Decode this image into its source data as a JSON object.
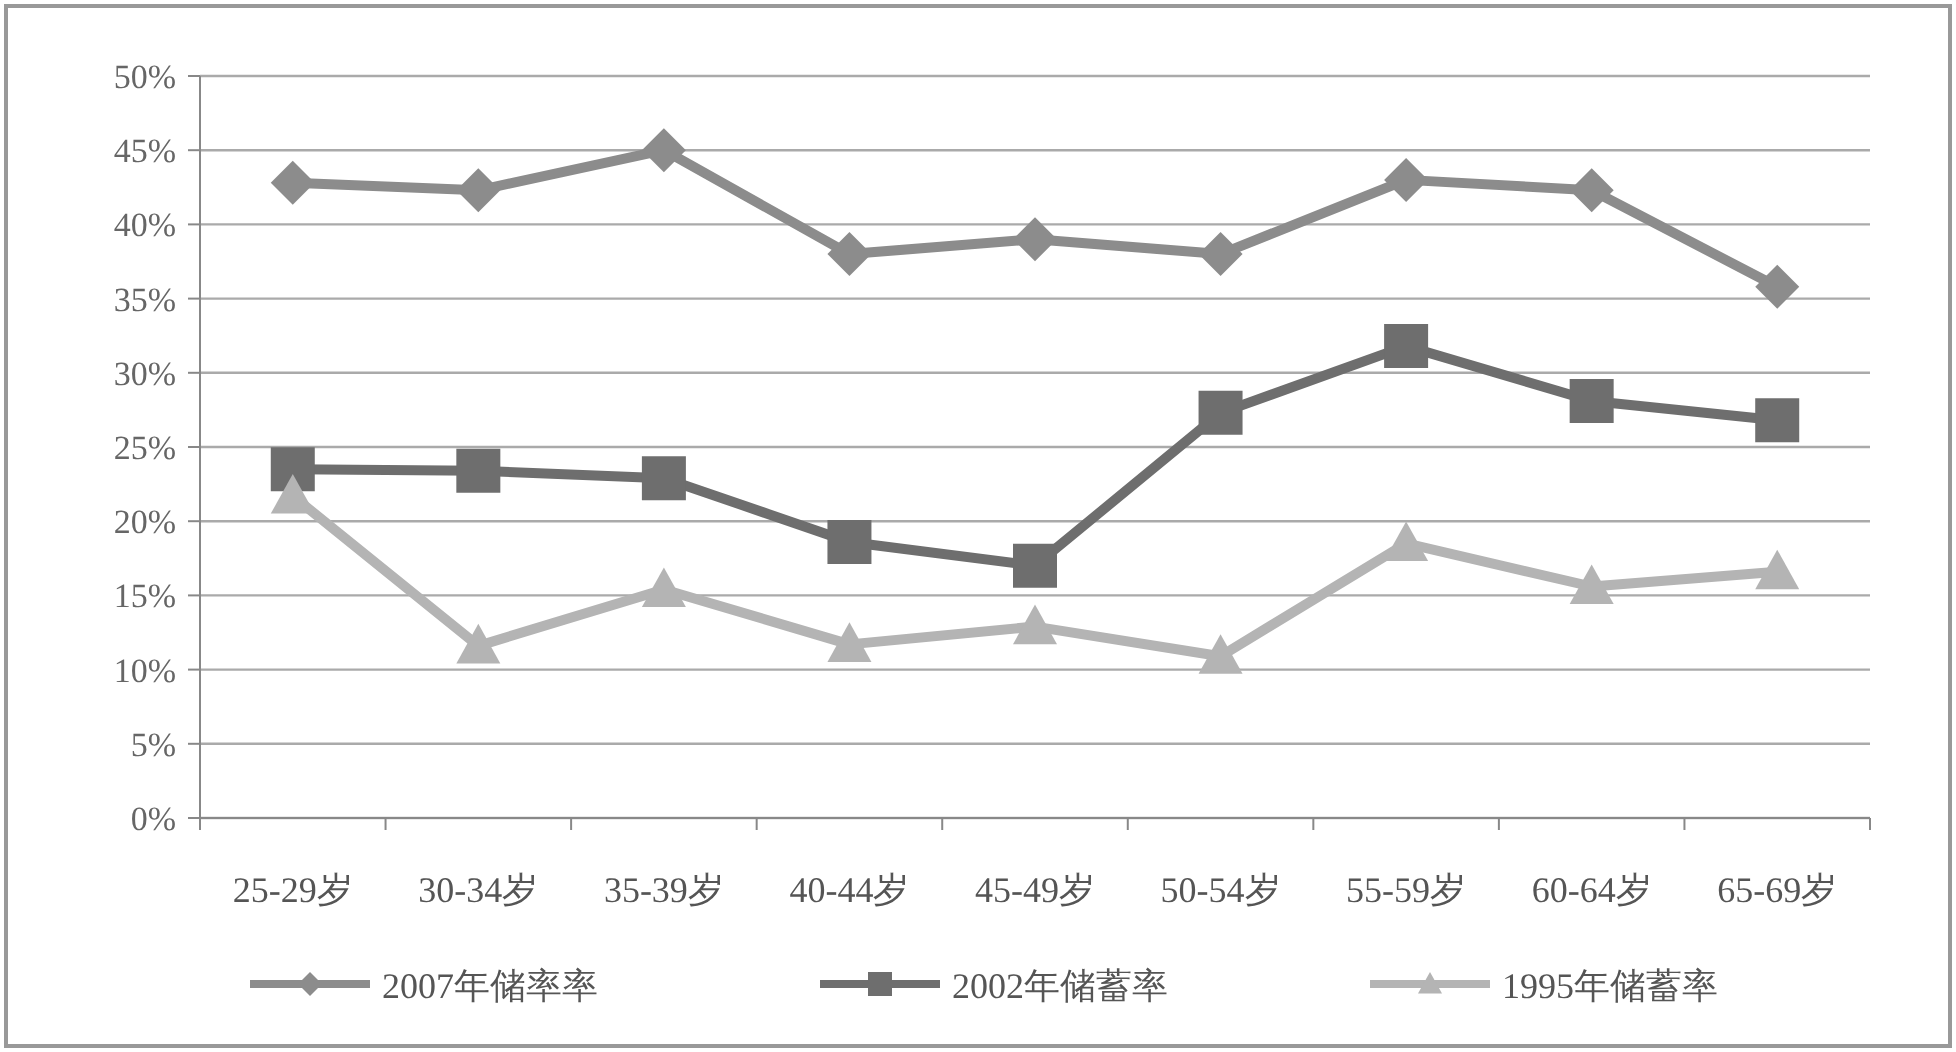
{
  "chart_data": {
    "type": "line",
    "categories": [
      "25-29岁",
      "30-34岁",
      "35-39岁",
      "40-44岁",
      "45-49岁",
      "50-54岁",
      "55-59岁",
      "60-64岁",
      "65-69岁"
    ],
    "series": [
      {
        "name": "2007年储率率",
        "color": "#8c8c8c",
        "marker": "diamond",
        "values": [
          42.8,
          42.3,
          45,
          38,
          39,
          38,
          43,
          42.3,
          35.8
        ]
      },
      {
        "name": "2002年储蓄率",
        "color": "#6e6e6e",
        "marker": "square",
        "values": [
          23.5,
          23.4,
          22.9,
          18.6,
          17,
          27.3,
          31.8,
          28.1,
          26.8
        ]
      },
      {
        "name": "1995年储蓄率",
        "color": "#b4b4b4",
        "marker": "triangle",
        "values": [
          21.7,
          11.6,
          15.4,
          11.7,
          12.9,
          10.9,
          18.5,
          15.6,
          16.6
        ]
      }
    ],
    "ylim": [
      0,
      50
    ],
    "yticks": [
      {
        "value": 0,
        "label": "0%"
      },
      {
        "value": 5,
        "label": "5%"
      },
      {
        "value": 10,
        "label": "10%"
      },
      {
        "value": 15,
        "label": "15%"
      },
      {
        "value": 20,
        "label": "20%"
      },
      {
        "value": 25,
        "label": "25%"
      },
      {
        "value": 30,
        "label": "30%"
      },
      {
        "value": 35,
        "label": "35%"
      },
      {
        "value": 40,
        "label": "40%"
      },
      {
        "value": 45,
        "label": "45%"
      },
      {
        "value": 50,
        "label": "50%"
      }
    ],
    "grid": "y",
    "legend": "bottom",
    "line_style": "solid"
  }
}
